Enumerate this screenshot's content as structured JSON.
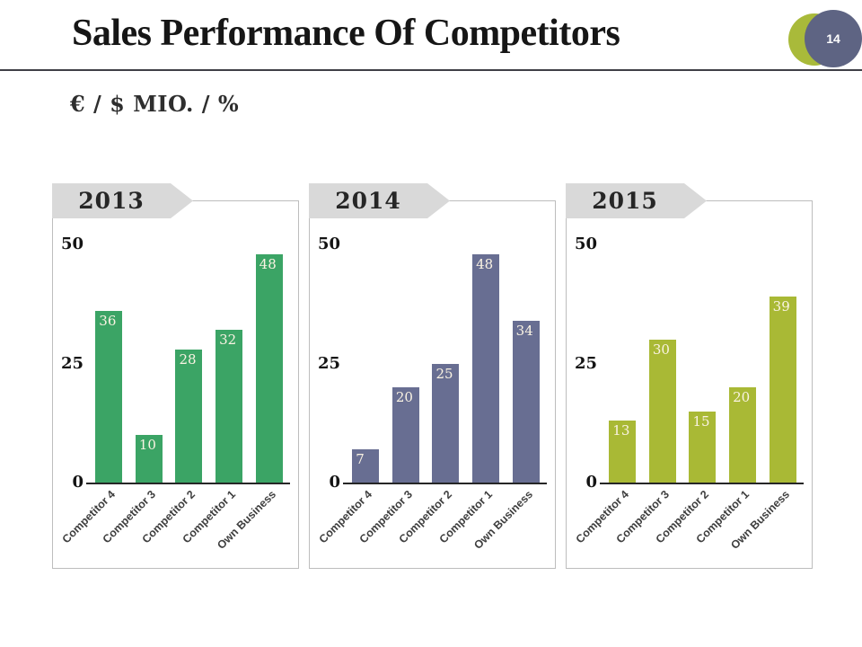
{
  "slide": {
    "title": "Sales Performance Of Competitors",
    "subtitle": "€ / $ MIO. / %",
    "page_number": "14"
  },
  "styles": {
    "banner_color": "#d9d9d9",
    "badge_green_color": "#a9ba3a",
    "badge_slate_color": "#5e6483",
    "rule_color": "#3f3f46",
    "axis_color": "#262626"
  },
  "chart_data": [
    {
      "type": "bar",
      "title": "2013",
      "categories": [
        "Competitor 4",
        "Competitor 3",
        "Competitor 2",
        "Competitor 1",
        "Own Business"
      ],
      "values": [
        36,
        10,
        28,
        32,
        48
      ],
      "bar_color": "#3ba465",
      "value_label_color": "#faf3e3",
      "ylim": [
        0,
        50
      ],
      "yticks": [
        50,
        25,
        0
      ],
      "grid": false,
      "legend": "none"
    },
    {
      "type": "bar",
      "title": "2014",
      "categories": [
        "Competitor 4",
        "Competitor 3",
        "Competitor 2",
        "Competitor 1",
        "Own Business"
      ],
      "values": [
        7,
        20,
        25,
        48,
        34
      ],
      "bar_color": "#686e92",
      "value_label_color": "#faf3e3",
      "ylim": [
        0,
        50
      ],
      "yticks": [
        50,
        25,
        0
      ],
      "grid": false,
      "legend": "none"
    },
    {
      "type": "bar",
      "title": "2015",
      "categories": [
        "Competitor 4",
        "Competitor 3",
        "Competitor 2",
        "Competitor 1",
        "Own Business"
      ],
      "values": [
        13,
        30,
        15,
        20,
        39
      ],
      "bar_color": "#a9b935",
      "value_label_color": "#faf3e3",
      "ylim": [
        0,
        50
      ],
      "yticks": [
        50,
        25,
        0
      ],
      "grid": false,
      "legend": "none"
    }
  ]
}
